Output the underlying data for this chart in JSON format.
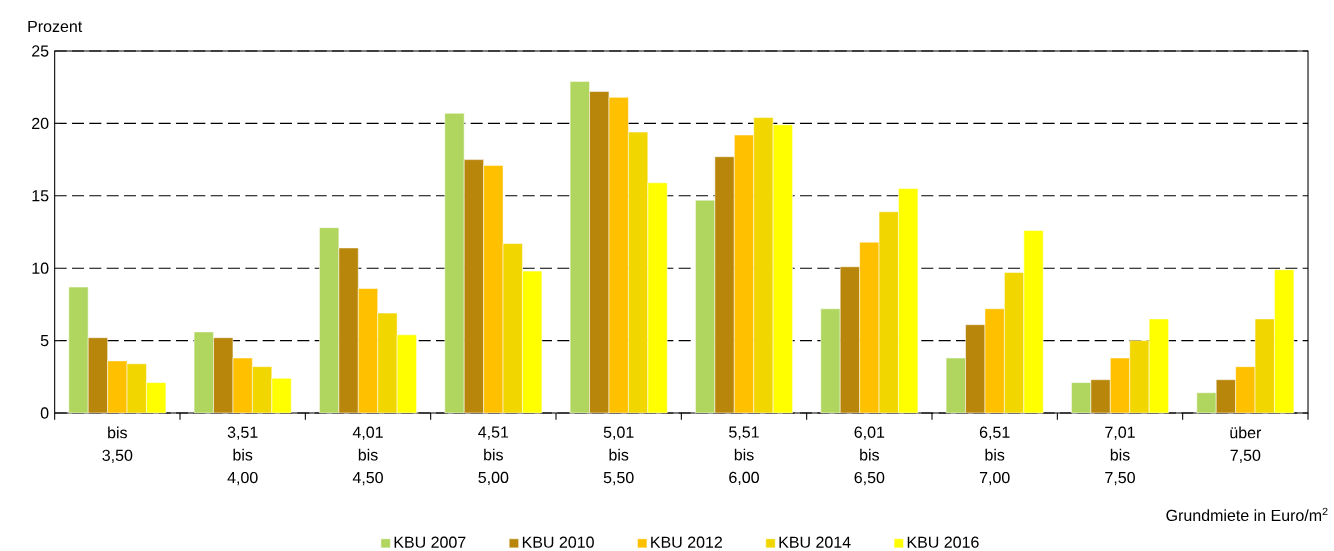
{
  "chart_data": {
    "type": "bar",
    "ylabel": "Prozent",
    "xlabel": "Grundmiete in Euro/m$^{2}$",
    "categories": [
      "bis 3,50",
      "3,51 bis 4,00",
      "4,01 bis 4,50",
      "4,51 bis 5,00",
      "5,01 bis 5,50",
      "5,51 bis 6,00",
      "6,01 bis 6,50",
      "6,51 bis 7,00",
      "7,01 bis 7,50",
      "über 7,50"
    ],
    "series": [
      {
        "name": "KBU 2007",
        "color": "#b0d660",
        "values": [
          8.7,
          5.6,
          12.8,
          20.7,
          22.9,
          14.7,
          7.2,
          3.8,
          2.1,
          1.4
        ]
      },
      {
        "name": "KBU 2010",
        "color": "#b8860b",
        "values": [
          5.2,
          5.2,
          11.4,
          17.5,
          22.2,
          17.7,
          10.1,
          6.1,
          2.3,
          2.3
        ]
      },
      {
        "name": "KBU 2012",
        "color": "#ffc000",
        "values": [
          3.6,
          3.8,
          8.6,
          17.1,
          21.8,
          19.2,
          11.8,
          7.2,
          3.8,
          3.2
        ]
      },
      {
        "name": "KBU 2014",
        "color": "#f2d600",
        "values": [
          3.4,
          3.2,
          6.9,
          11.7,
          19.4,
          20.4,
          13.9,
          9.7,
          5.0,
          6.5
        ]
      },
      {
        "name": "KBU 2016",
        "color": "#ffff00",
        "values": [
          2.1,
          2.4,
          5.4,
          9.8,
          15.9,
          19.9,
          15.5,
          12.6,
          6.5,
          9.9
        ]
      }
    ],
    "ylim": [
      0,
      25
    ],
    "yticks": [
      0,
      5,
      10,
      15,
      20,
      25
    ],
    "grid": "y",
    "legend": "bottom"
  }
}
